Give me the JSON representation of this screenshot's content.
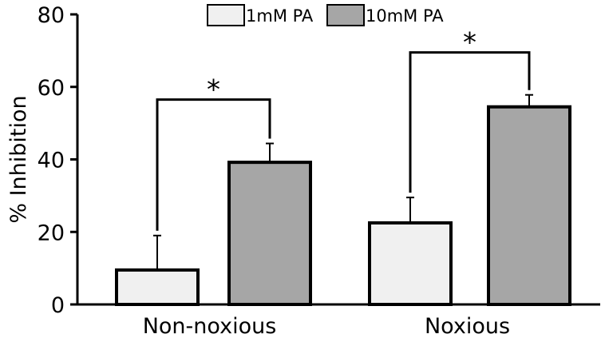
{
  "chart_data": {
    "type": "bar",
    "categories": [
      "Non-noxious",
      "Noxious"
    ],
    "series": [
      {
        "name": "1mM PA",
        "values": [
          9.5,
          22.5
        ],
        "errors": [
          9.5,
          7
        ],
        "color": "#f0f0f0"
      },
      {
        "name": "10mM PA",
        "values": [
          39.2,
          54.5
        ],
        "errors": [
          5.2,
          3.3
        ],
        "color": "#a6a6a6"
      }
    ],
    "ylabel": "% Inhibition",
    "ylim": [
      0,
      80
    ],
    "yticks": [
      0,
      20,
      40,
      60,
      80
    ],
    "legend": "top-center",
    "grid": false,
    "significance": [
      {
        "category": "Non-noxious",
        "label": "*"
      },
      {
        "category": "Noxious",
        "label": "*"
      }
    ]
  }
}
